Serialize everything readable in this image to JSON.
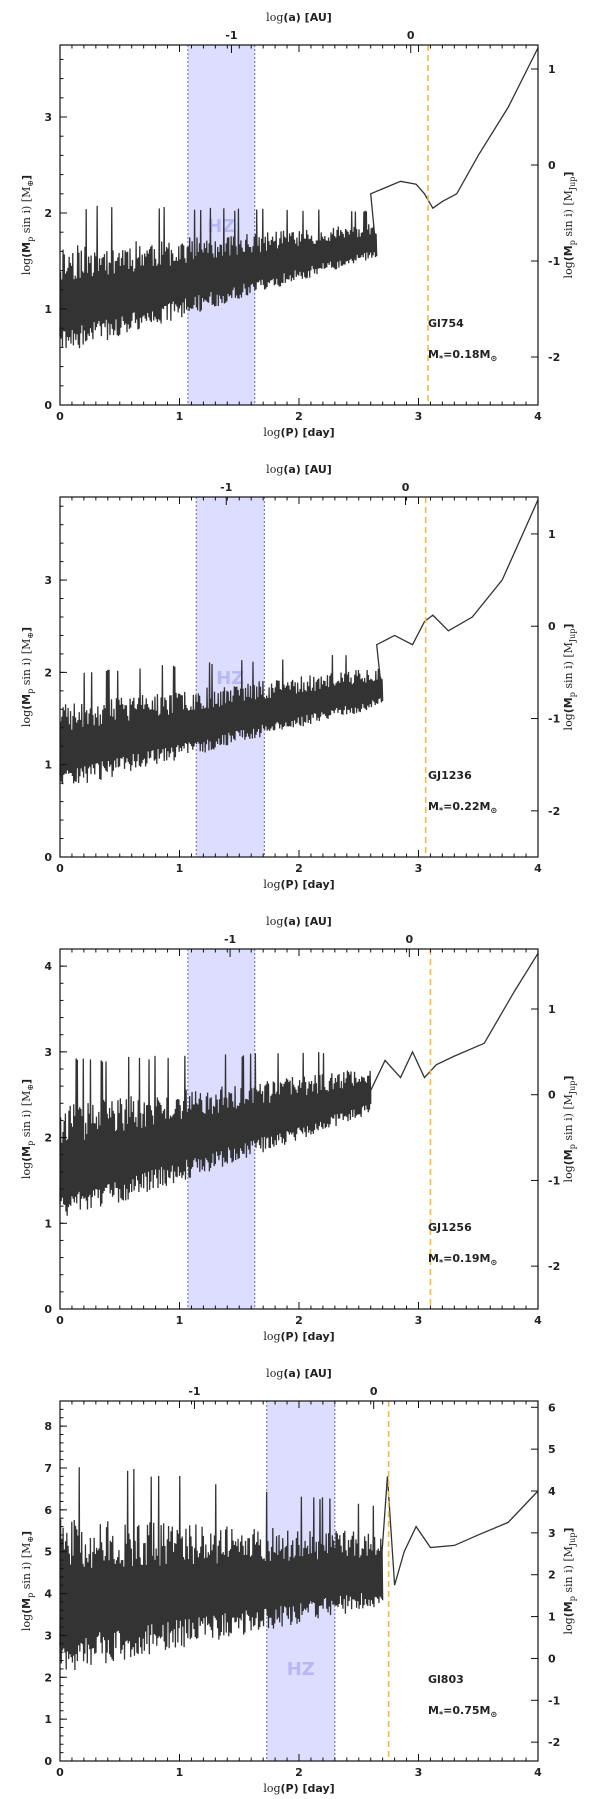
{
  "colors": {
    "hz_fill": "#ddddff",
    "hz_edge": "#6666aa",
    "line": "#333333",
    "snow": "#f5b942",
    "axis": "#111111"
  },
  "chart_data": [
    {
      "type": "line",
      "star": "Gl754",
      "mass_label": "M",
      "mass_sub": "*",
      "mass_value": "=0.18M",
      "sun_symbol": "⊙",
      "hz_label": "HZ",
      "xlim": [
        0,
        4
      ],
      "ylim": [
        0,
        3.75
      ],
      "y2lim": [
        -2.5,
        1.25
      ],
      "xticks": [
        "0",
        "1",
        "2",
        "3",
        "4"
      ],
      "yticks": [
        "0",
        "1",
        "2",
        "3"
      ],
      "y2ticks": [
        "-2",
        "-1",
        "0",
        "1"
      ],
      "top_ticks": [
        {
          "pos": -1,
          "label": "-1"
        },
        {
          "pos": 0,
          "label": "0"
        }
      ],
      "hz": [
        1.07,
        1.63
      ],
      "snow_line": 3.08,
      "noise": {
        "start": 1.1,
        "end": 1.72,
        "cut": 2.65,
        "amp0": 0.58,
        "amp1": 0.18,
        "seed": 11
      },
      "tail": [
        [
          2.6,
          2.2
        ],
        [
          2.85,
          2.33
        ],
        [
          2.98,
          2.3
        ],
        [
          3.05,
          2.2
        ],
        [
          3.12,
          2.05
        ],
        [
          3.2,
          2.12
        ],
        [
          3.32,
          2.2
        ],
        [
          3.5,
          2.6
        ],
        [
          3.75,
          3.1
        ],
        [
          4.0,
          3.72
        ]
      ]
    },
    {
      "type": "line",
      "star": "GJ1236",
      "mass_label": "M",
      "mass_sub": "*",
      "mass_value": "=0.22M",
      "sun_symbol": "⊙",
      "hz_label": "HZ",
      "xlim": [
        0,
        4
      ],
      "ylim": [
        0,
        3.9
      ],
      "y2lim": [
        -2.5,
        1.4
      ],
      "xticks": [
        "0",
        "1",
        "2",
        "3",
        "4"
      ],
      "yticks": [
        "0",
        "1",
        "2",
        "3"
      ],
      "y2ticks": [
        "-2",
        "-1",
        "0",
        "1"
      ],
      "top_ticks": [
        {
          "pos": -1,
          "label": "-1"
        },
        {
          "pos": 0,
          "label": "0"
        }
      ],
      "hz": [
        1.14,
        1.71
      ],
      "snow_line": 3.06,
      "noise": {
        "start": 1.2,
        "end": 1.85,
        "cut": 2.7,
        "amp0": 0.48,
        "amp1": 0.22,
        "seed": 23
      },
      "tail": [
        [
          2.65,
          2.3
        ],
        [
          2.8,
          2.4
        ],
        [
          2.95,
          2.3
        ],
        [
          3.05,
          2.55
        ],
        [
          3.12,
          2.62
        ],
        [
          3.25,
          2.45
        ],
        [
          3.45,
          2.6
        ],
        [
          3.7,
          3.0
        ],
        [
          4.0,
          3.87
        ]
      ]
    },
    {
      "type": "line",
      "star": "GJ1256",
      "mass_label": "M",
      "mass_sub": "*",
      "mass_value": "=0.19M",
      "sun_symbol": "⊙",
      "hz_label": "HZ",
      "xlim": [
        0,
        4
      ],
      "ylim": [
        0,
        4.2
      ],
      "y2lim": [
        -2.5,
        1.7
      ],
      "xticks": [
        "0",
        "1",
        "2",
        "3",
        "4"
      ],
      "yticks": [
        "0",
        "1",
        "2",
        "3",
        "4"
      ],
      "y2ticks": [
        "-2",
        "-1",
        "0",
        "1"
      ],
      "top_ticks": [
        {
          "pos": -1,
          "label": "-1"
        },
        {
          "pos": 0,
          "label": "0"
        }
      ],
      "hz": [
        1.07,
        1.63
      ],
      "snow_line": 3.1,
      "noise": {
        "start": 1.7,
        "end": 2.55,
        "cut": 2.6,
        "amp0": 0.72,
        "amp1": 0.28,
        "seed": 37
      },
      "tail": [
        [
          2.6,
          2.55
        ],
        [
          2.72,
          2.9
        ],
        [
          2.85,
          2.7
        ],
        [
          2.95,
          3.0
        ],
        [
          3.05,
          2.7
        ],
        [
          3.15,
          2.85
        ],
        [
          3.3,
          2.95
        ],
        [
          3.55,
          3.1
        ],
        [
          3.8,
          3.7
        ],
        [
          4.0,
          4.15
        ]
      ]
    },
    {
      "type": "line",
      "star": "Gl803",
      "mass_label": "M",
      "mass_sub": "*",
      "mass_value": "=0.75M",
      "sun_symbol": "⊙",
      "hz_label": "HZ",
      "xlim": [
        0,
        4
      ],
      "ylim": [
        0,
        8.6
      ],
      "y2lim": [
        -2.45,
        6.15
      ],
      "xticks": [
        "0",
        "1",
        "2",
        "3",
        "4"
      ],
      "yticks": [
        "0",
        "1",
        "2",
        "3",
        "4",
        "5",
        "6",
        "7",
        "8"
      ],
      "y2ticks": [
        "-2",
        "-1",
        "0",
        "1",
        "2",
        "3",
        "4",
        "5",
        "6"
      ],
      "top_ticks": [
        {
          "pos": -1,
          "label": "-1"
        },
        {
          "pos": 0,
          "label": "0"
        }
      ],
      "hz": [
        1.73,
        2.3
      ],
      "snow_line": 2.75,
      "noise": {
        "start": 4.0,
        "end": 4.6,
        "cut": 2.7,
        "amp0": 1.9,
        "amp1": 0.9,
        "seed": 51
      },
      "tail": [
        [
          2.68,
          4.4
        ],
        [
          2.74,
          6.8
        ],
        [
          2.8,
          4.2
        ],
        [
          2.88,
          5.0
        ],
        [
          2.98,
          5.6
        ],
        [
          3.1,
          5.1
        ],
        [
          3.3,
          5.15
        ],
        [
          3.5,
          5.4
        ],
        [
          3.75,
          5.7
        ],
        [
          4.0,
          6.45
        ]
      ]
    }
  ],
  "axis_text": {
    "top_prefix": "log",
    "top_main": "(a) [AU]",
    "bottom_prefix": "log",
    "bottom_main": "(P) [day]",
    "left_prefix": "log",
    "left_main": "(M",
    "left_sub": "p",
    "left_mid": " sin i) [M",
    "left_unit_sub": "⊕",
    "left_end": "]",
    "right_prefix": "log",
    "right_main": "(M",
    "right_sub": "p",
    "right_mid": " sin i) [M",
    "right_unit_sub": "Jup",
    "right_end": "]"
  }
}
